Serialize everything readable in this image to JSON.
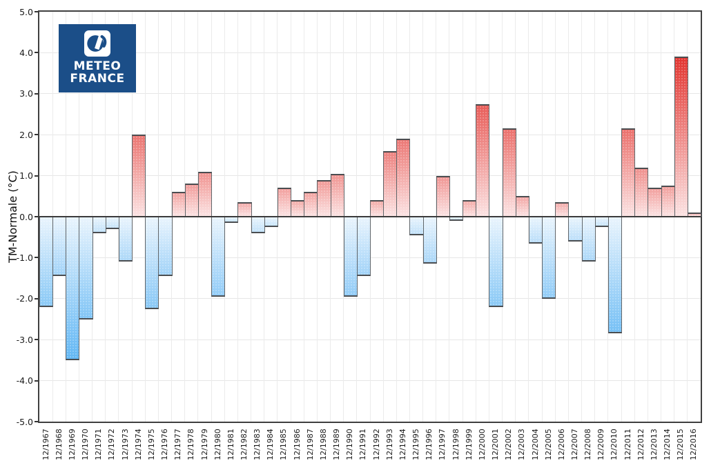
{
  "logo": {
    "line1": "METEO",
    "line2": "FRANCE",
    "bg_color": "#1b4e88"
  },
  "y_axis": {
    "title": "TM-Normale (°C)",
    "tick_labels": [
      "5.0",
      "4.0",
      "3.0",
      "2.0",
      "1.0",
      "0.0",
      "-1.0",
      "-2.0",
      "-3.0",
      "-4.0",
      "-5.0"
    ]
  },
  "chart_data": {
    "type": "bar",
    "title": "",
    "xlabel": "",
    "ylabel": "TM-Normale (°C)",
    "ylim": [
      -5.0,
      5.0
    ],
    "y_tick_step": 1.0,
    "grid": true,
    "legend": "none",
    "categories": [
      "12/1967",
      "12/1968",
      "12/1969",
      "12/1970",
      "12/1971",
      "12/1972",
      "12/1973",
      "12/1974",
      "12/1975",
      "12/1976",
      "12/1977",
      "12/1978",
      "12/1979",
      "12/1980",
      "12/1981",
      "12/1982",
      "12/1983",
      "12/1984",
      "12/1985",
      "12/1986",
      "12/1987",
      "12/1988",
      "12/1989",
      "12/1990",
      "12/1991",
      "12/1992",
      "12/1993",
      "12/1994",
      "12/1995",
      "12/1996",
      "12/1997",
      "12/1998",
      "12/1999",
      "12/2000",
      "12/2001",
      "12/2002",
      "12/2003",
      "12/2004",
      "12/2005",
      "12/2006",
      "12/2007",
      "12/2008",
      "12/2009",
      "12/2010",
      "12/2011",
      "12/2012",
      "12/2013",
      "12/2014",
      "12/2015",
      "12/2016"
    ],
    "values": [
      -2.2,
      -1.45,
      -3.5,
      -2.5,
      -0.4,
      -0.3,
      -1.1,
      2.0,
      -2.25,
      -1.45,
      0.6,
      0.8,
      1.1,
      -1.95,
      -0.15,
      0.35,
      -0.4,
      -0.25,
      0.7,
      0.4,
      0.6,
      0.9,
      1.05,
      -1.95,
      -1.45,
      0.4,
      1.6,
      1.9,
      -0.45,
      -1.15,
      1.0,
      -0.1,
      0.4,
      2.75,
      -2.2,
      2.15,
      0.5,
      -0.65,
      -2.0,
      0.35,
      -0.6,
      -1.1,
      -0.25,
      -2.85,
      2.15,
      1.2,
      0.7,
      0.75,
      3.9,
      0.1
    ],
    "colors": {
      "positive_deep": "#e23530",
      "positive_pale_top": "#f5b8b6",
      "positive_near_zero": "#fbe2e2",
      "negative_deep": "#62b7f4",
      "negative_pale_bottom": "#cfe7fa",
      "negative_near_zero": "#e9f4fd",
      "bar_border": "#5f6468",
      "zero_line": "#3a3a3a",
      "grid_line": "#e6e6e6",
      "plot_border": "#3f3f3f"
    }
  }
}
